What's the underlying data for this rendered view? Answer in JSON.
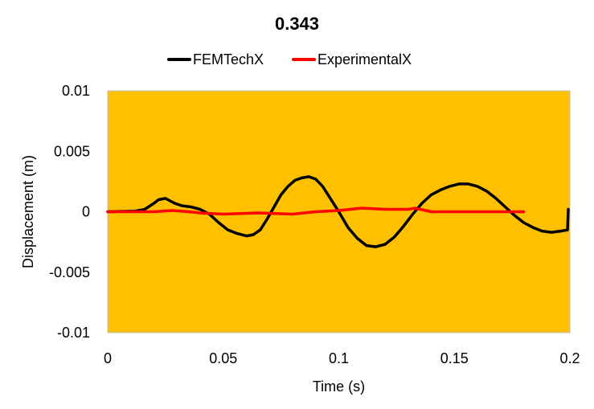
{
  "chart_data": {
    "type": "line",
    "title": "0.343",
    "xlabel": "Time (s)",
    "ylabel": "Displacement (m)",
    "xlim": [
      0,
      0.2
    ],
    "ylim": [
      -0.01,
      0.01
    ],
    "x_ticks": [
      0,
      0.05,
      0.1,
      0.15,
      0.2
    ],
    "x_tick_labels": [
      "0",
      "0.05",
      "0.1",
      "0.15",
      "0.2"
    ],
    "y_ticks": [
      0.01,
      0.005,
      0,
      -0.005,
      -0.01
    ],
    "y_tick_labels": [
      "0.01",
      "0.005",
      "0",
      "-0.005",
      "-0.01"
    ],
    "grid": false,
    "legend_position": "top",
    "plot_background": "#FFC000",
    "series": [
      {
        "name": "FEMTechX",
        "color": "#000000",
        "points": [
          [
            0,
            0
          ],
          [
            0.012,
            5e-05
          ],
          [
            0.016,
            0.0002
          ],
          [
            0.02,
            0.0007
          ],
          [
            0.022,
            0.001
          ],
          [
            0.025,
            0.0011
          ],
          [
            0.027,
            0.0009
          ],
          [
            0.029,
            0.0007
          ],
          [
            0.032,
            0.0005
          ],
          [
            0.036,
            0.0004
          ],
          [
            0.04,
            0.0002
          ],
          [
            0.044,
            -0.0002
          ],
          [
            0.048,
            -0.0009
          ],
          [
            0.052,
            -0.0015
          ],
          [
            0.056,
            -0.0018
          ],
          [
            0.06,
            -0.002
          ],
          [
            0.063,
            -0.0019
          ],
          [
            0.066,
            -0.0015
          ],
          [
            0.069,
            -0.0006
          ],
          [
            0.072,
            0.0004
          ],
          [
            0.075,
            0.0014
          ],
          [
            0.078,
            0.0021
          ],
          [
            0.081,
            0.0026
          ],
          [
            0.084,
            0.0028
          ],
          [
            0.087,
            0.0029
          ],
          [
            0.09,
            0.0027
          ],
          [
            0.093,
            0.0021
          ],
          [
            0.096,
            0.0012
          ],
          [
            0.1,
            0.0
          ],
          [
            0.104,
            -0.0013
          ],
          [
            0.108,
            -0.0022
          ],
          [
            0.112,
            -0.0028
          ],
          [
            0.116,
            -0.0029
          ],
          [
            0.12,
            -0.0027
          ],
          [
            0.124,
            -0.0021
          ],
          [
            0.128,
            -0.0012
          ],
          [
            0.132,
            -0.0002
          ],
          [
            0.136,
            0.0007
          ],
          [
            0.14,
            0.0014
          ],
          [
            0.144,
            0.0018
          ],
          [
            0.148,
            0.0021
          ],
          [
            0.152,
            0.0023
          ],
          [
            0.156,
            0.0023
          ],
          [
            0.16,
            0.0021
          ],
          [
            0.164,
            0.0017
          ],
          [
            0.168,
            0.0011
          ],
          [
            0.172,
            0.0004
          ],
          [
            0.176,
            -0.0003
          ],
          [
            0.18,
            -0.0009
          ],
          [
            0.184,
            -0.0013
          ],
          [
            0.188,
            -0.0016
          ],
          [
            0.192,
            -0.0017
          ],
          [
            0.196,
            -0.0016
          ],
          [
            0.199,
            -0.0015
          ],
          [
            0.1993,
            0.0002
          ]
        ]
      },
      {
        "name": "ExperimentalX",
        "color": "#FF0000",
        "points": [
          [
            0,
            0.0
          ],
          [
            0.02,
            0.0
          ],
          [
            0.028,
            0.0001
          ],
          [
            0.035,
            0.0
          ],
          [
            0.04,
            -0.0001
          ],
          [
            0.05,
            -0.0002
          ],
          [
            0.065,
            -0.0001
          ],
          [
            0.08,
            -0.0002
          ],
          [
            0.09,
            0.0
          ],
          [
            0.1,
            0.0001
          ],
          [
            0.11,
            0.0003
          ],
          [
            0.12,
            0.0002
          ],
          [
            0.13,
            0.0002
          ],
          [
            0.133,
            0.0003
          ],
          [
            0.14,
            0.0
          ],
          [
            0.16,
            0.0
          ],
          [
            0.18,
            0.0
          ]
        ]
      }
    ]
  }
}
